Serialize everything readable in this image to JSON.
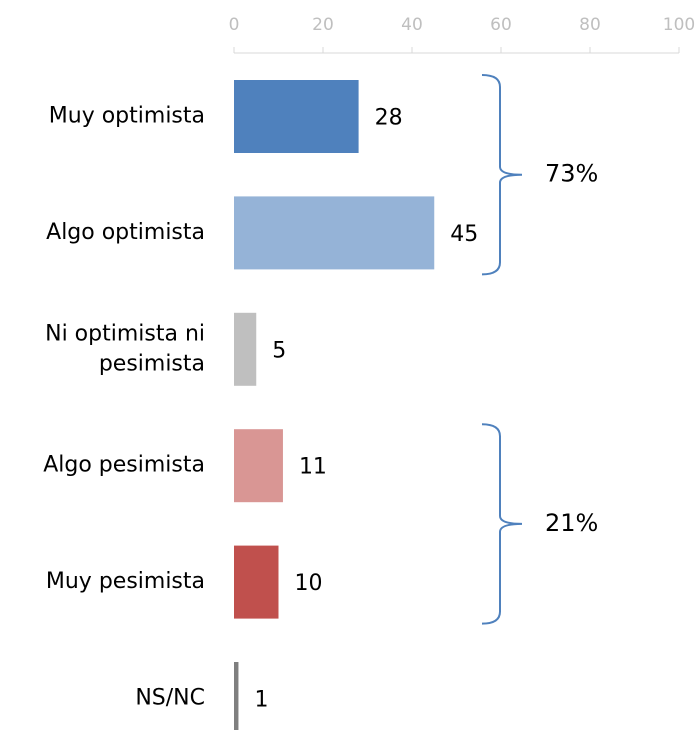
{
  "chart_data": {
    "type": "bar",
    "orientation": "horizontal",
    "categories": [
      "Muy optimista",
      "Algo optimista",
      "Ni optimista ni\npesimista",
      "Algo pesimista",
      "Muy pesimista",
      "NS/NC"
    ],
    "values": [
      28,
      45,
      5,
      11,
      10,
      1
    ],
    "colors": [
      "#4f81bd",
      "#95b3d7",
      "#bfbfbf",
      "#d99694",
      "#c0504d",
      "#7f7f7f"
    ],
    "xlim": [
      0,
      100
    ],
    "xticks": [
      0,
      20,
      40,
      60,
      80,
      100
    ],
    "annotations": [
      "73%",
      "21%"
    ]
  }
}
